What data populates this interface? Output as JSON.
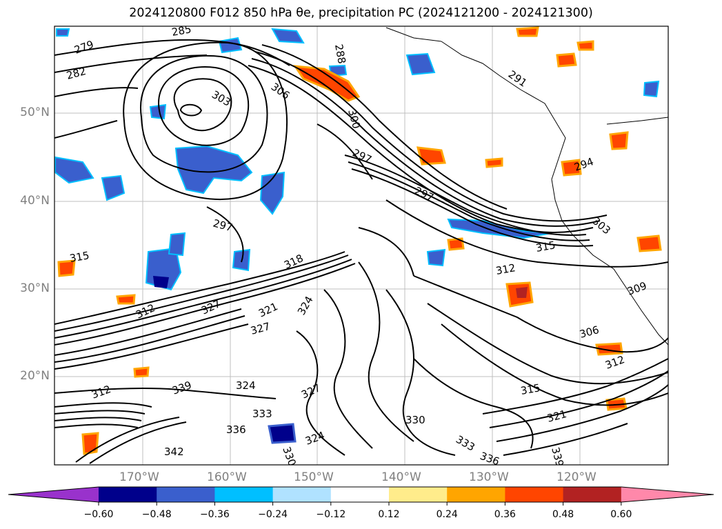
{
  "title": "2024120800 F012 850 hPa θe, precipitation PC (2024121200 - 2024121300)",
  "map": {
    "lat_labels": [
      "50°N",
      "40°N",
      "30°N",
      "20°N"
    ],
    "lon_labels": [
      "170°W",
      "160°W",
      "150°W",
      "140°W",
      "130°W",
      "120°W"
    ],
    "gridlines": true,
    "contour_labels": [
      "279",
      "282",
      "285",
      "288",
      "291",
      "294",
      "297",
      "300",
      "303",
      "306",
      "309",
      "312",
      "315",
      "318",
      "321",
      "324",
      "327",
      "330",
      "333",
      "336",
      "339",
      "342"
    ]
  },
  "colorbar": {
    "ticks": [
      "−0.60",
      "−0.48",
      "−0.36",
      "−0.24",
      "−0.12",
      "0.12",
      "0.24",
      "0.36",
      "0.48",
      "0.60"
    ],
    "colors": [
      "#9932cc",
      "#00008b",
      "#3a5fcd",
      "#00bfff",
      "#b0e2ff",
      "#ffffff",
      "#ffec8b",
      "#ffa500",
      "#ff4500",
      "#b22222",
      "#ff88aa"
    ]
  }
}
